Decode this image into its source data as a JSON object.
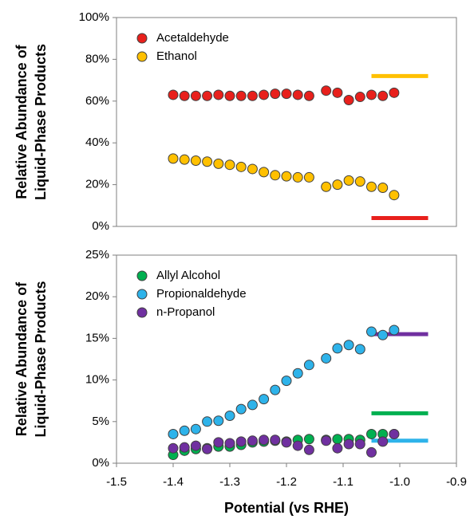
{
  "chart_data": [
    {
      "type": "scatter",
      "ylabel": [
        "Relative Abundance of",
        "Liquid-Phase Products"
      ],
      "xlim": [
        -1.5,
        -0.9
      ],
      "ylim": [
        0,
        100
      ],
      "yticks": [
        {
          "value": 0,
          "label": "0%"
        },
        {
          "value": 20,
          "label": "20%"
        },
        {
          "value": 40,
          "label": "40%"
        },
        {
          "value": 60,
          "label": "60%"
        },
        {
          "value": 80,
          "label": "80%"
        },
        {
          "value": 100,
          "label": "100%"
        }
      ],
      "x": [
        -1.4,
        -1.38,
        -1.36,
        -1.34,
        -1.32,
        -1.3,
        -1.28,
        -1.26,
        -1.24,
        -1.22,
        -1.2,
        -1.18,
        -1.16,
        -1.13,
        -1.11,
        -1.09,
        -1.07,
        -1.05,
        -1.03,
        -1.01
      ],
      "ref_x": [
        -1.05,
        -0.95
      ],
      "legend": "upper left",
      "series": [
        {
          "name": "Acetaldehyde",
          "color": "#e8201c",
          "ref_y": 4,
          "values": [
            63,
            62.5,
            62.5,
            62.5,
            63,
            62.5,
            62.5,
            62.5,
            63,
            63.5,
            63.5,
            63,
            62.5,
            65,
            64,
            60.5,
            62,
            63,
            62.5,
            64
          ]
        },
        {
          "name": "Ethanol",
          "color": "#ffc000",
          "ref_y": 72,
          "values": [
            32.5,
            32,
            31.5,
            31,
            30,
            29.5,
            28.5,
            27.5,
            26,
            24.5,
            24,
            23.5,
            23.5,
            19,
            20,
            22,
            21.5,
            19,
            18.5,
            15
          ]
        }
      ]
    },
    {
      "type": "scatter",
      "ylabel": [
        "Relative Abundance of",
        "Liquid-Phase Products"
      ],
      "xlabel": "Potential (vs RHE)",
      "xlim": [
        -1.5,
        -0.9
      ],
      "ylim": [
        0,
        25
      ],
      "xticks": [
        -1.5,
        -1.4,
        -1.3,
        -1.2,
        -1.1,
        {
          "value": -1.0,
          "label": "-1.0"
        },
        -0.9
      ],
      "yticks": [
        {
          "value": 0,
          "label": "0%"
        },
        {
          "value": 5,
          "label": "5%"
        },
        {
          "value": 10,
          "label": "10%"
        },
        {
          "value": 15,
          "label": "15%"
        },
        {
          "value": 20,
          "label": "20%"
        },
        {
          "value": 25,
          "label": "25%"
        }
      ],
      "x": [
        -1.4,
        -1.38,
        -1.36,
        -1.34,
        -1.32,
        -1.3,
        -1.28,
        -1.26,
        -1.24,
        -1.22,
        -1.2,
        -1.18,
        -1.16,
        -1.13,
        -1.11,
        -1.09,
        -1.07,
        -1.05,
        -1.03,
        -1.01
      ],
      "ref_x": [
        -1.05,
        -0.95
      ],
      "legend": "upper left",
      "series": [
        {
          "name": "Allyl Alcohol",
          "color": "#00b050",
          "ref_y": 6,
          "values": [
            1.0,
            1.5,
            1.7,
            1.8,
            2.0,
            2.0,
            2.2,
            2.5,
            2.6,
            2.7,
            2.6,
            2.8,
            2.9,
            2.8,
            2.9,
            2.9,
            2.8,
            3.5,
            3.5,
            3.5
          ]
        },
        {
          "name": "Propionaldehyde",
          "color": "#2eb3ea",
          "ref_y": 2.7,
          "values": [
            3.5,
            3.9,
            4.1,
            5.0,
            5.1,
            5.7,
            6.5,
            7.0,
            7.7,
            8.8,
            9.9,
            10.8,
            11.8,
            12.6,
            13.8,
            14.2,
            13.7,
            15.8,
            15.4,
            16.0
          ]
        },
        {
          "name": "n-Propanol",
          "color": "#7030a0",
          "ref_y": 15.5,
          "values": [
            1.8,
            1.9,
            2.1,
            1.7,
            2.5,
            2.4,
            2.6,
            2.7,
            2.8,
            2.8,
            2.5,
            2.1,
            1.6,
            2.7,
            1.8,
            2.3,
            2.3,
            1.3,
            2.6,
            3.5
          ]
        }
      ]
    }
  ]
}
